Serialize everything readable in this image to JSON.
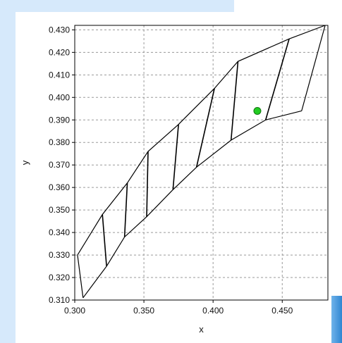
{
  "chart_data": {
    "type": "line",
    "title": "",
    "xlabel": "x",
    "ylabel": "y",
    "xlim": [
      0.3,
      0.483
    ],
    "ylim": [
      0.31,
      0.432
    ],
    "x_ticks": [
      "0.300",
      "0.350",
      "0.400",
      "0.450"
    ],
    "y_ticks": [
      "0.310",
      "0.320",
      "0.330",
      "0.340",
      "0.350",
      "0.360",
      "0.370",
      "0.380",
      "0.390",
      "0.400",
      "0.410",
      "0.420",
      "0.430"
    ],
    "grid": true,
    "outline": {
      "upper_curve": [
        [
          0.302,
          0.33
        ],
        [
          0.32,
          0.348
        ],
        [
          0.338,
          0.362
        ],
        [
          0.353,
          0.376
        ],
        [
          0.375,
          0.388
        ],
        [
          0.401,
          0.404
        ],
        [
          0.418,
          0.416
        ],
        [
          0.455,
          0.426
        ],
        [
          0.481,
          0.432
        ]
      ],
      "lower_curve": [
        [
          0.306,
          0.311
        ],
        [
          0.323,
          0.325
        ],
        [
          0.336,
          0.338
        ],
        [
          0.352,
          0.347
        ],
        [
          0.371,
          0.359
        ],
        [
          0.388,
          0.369
        ],
        [
          0.413,
          0.381
        ],
        [
          0.438,
          0.39
        ],
        [
          0.464,
          0.394
        ]
      ],
      "right_edge": [
        [
          0.481,
          0.432
        ],
        [
          0.464,
          0.394
        ]
      ],
      "left_edge": [
        [
          0.302,
          0.33
        ],
        [
          0.306,
          0.311
        ]
      ]
    },
    "bins": [
      [
        [
          0.32,
          0.348
        ],
        [
          0.323,
          0.325
        ]
      ],
      [
        [
          0.338,
          0.362
        ],
        [
          0.336,
          0.338
        ]
      ],
      [
        [
          0.353,
          0.376
        ],
        [
          0.352,
          0.347
        ]
      ],
      [
        [
          0.375,
          0.388
        ],
        [
          0.371,
          0.359
        ]
      ],
      [
        [
          0.401,
          0.404
        ],
        [
          0.388,
          0.369
        ]
      ],
      [
        [
          0.418,
          0.416
        ],
        [
          0.413,
          0.381
        ]
      ],
      [
        [
          0.455,
          0.426
        ],
        [
          0.438,
          0.39
        ]
      ]
    ],
    "point": {
      "x": 0.432,
      "y": 0.394,
      "color": "#22cc22"
    },
    "colors": {
      "line": "#000000",
      "grid": "#9a9a9a"
    }
  }
}
